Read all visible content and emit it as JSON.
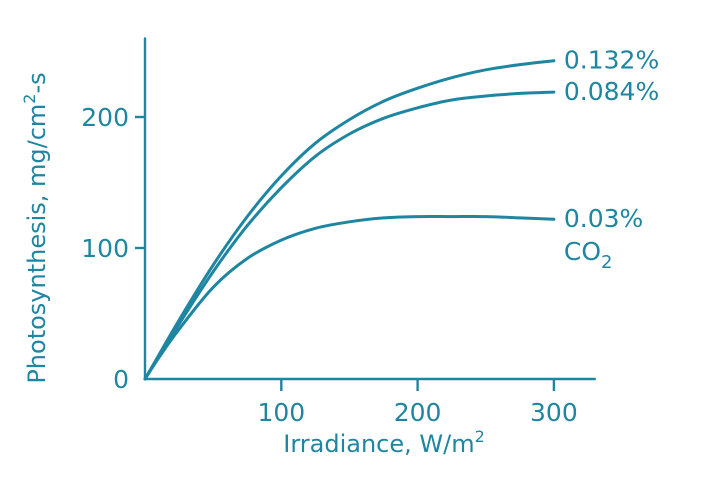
{
  "chart_data": {
    "type": "line",
    "title": "",
    "xlabel": "Irradiance, W/m",
    "xlabel_superscript": "2",
    "ylabel": "Photosynthesis, mg/cm",
    "ylabel_superscript": "2",
    "ylabel_suffix": "-s",
    "xlim": [
      0,
      330
    ],
    "ylim": [
      0,
      260
    ],
    "xticks": [
      100,
      200,
      300
    ],
    "yticks": [
      0,
      100,
      200
    ],
    "grid": false,
    "legend": "inline labels at right end of each curve",
    "colors": {
      "line": "#1e86a0",
      "axes": "#1e86a0",
      "text": "#1e86a0"
    },
    "series": [
      {
        "name": "0.132%",
        "x": [
          0,
          10,
          25,
          50,
          75,
          100,
          125,
          150,
          175,
          200,
          225,
          250,
          275,
          300
        ],
        "y": [
          0,
          18,
          45,
          87,
          124,
          155,
          180,
          198,
          212,
          222,
          230,
          236,
          240,
          243
        ]
      },
      {
        "name": "0.084%",
        "x": [
          0,
          10,
          25,
          50,
          75,
          100,
          125,
          150,
          175,
          200,
          225,
          250,
          275,
          300
        ],
        "y": [
          0,
          17,
          42,
          82,
          117,
          146,
          170,
          187,
          199,
          207,
          213,
          216,
          218,
          219
        ]
      },
      {
        "name": "0.03%",
        "name_line2": "CO",
        "name_line2_subscript": "2",
        "x": [
          0,
          10,
          25,
          50,
          75,
          100,
          125,
          150,
          175,
          200,
          225,
          250,
          275,
          300
        ],
        "y": [
          0,
          16,
          38,
          70,
          92,
          106,
          115,
          120,
          123,
          124,
          124,
          124,
          123,
          122
        ]
      }
    ]
  }
}
